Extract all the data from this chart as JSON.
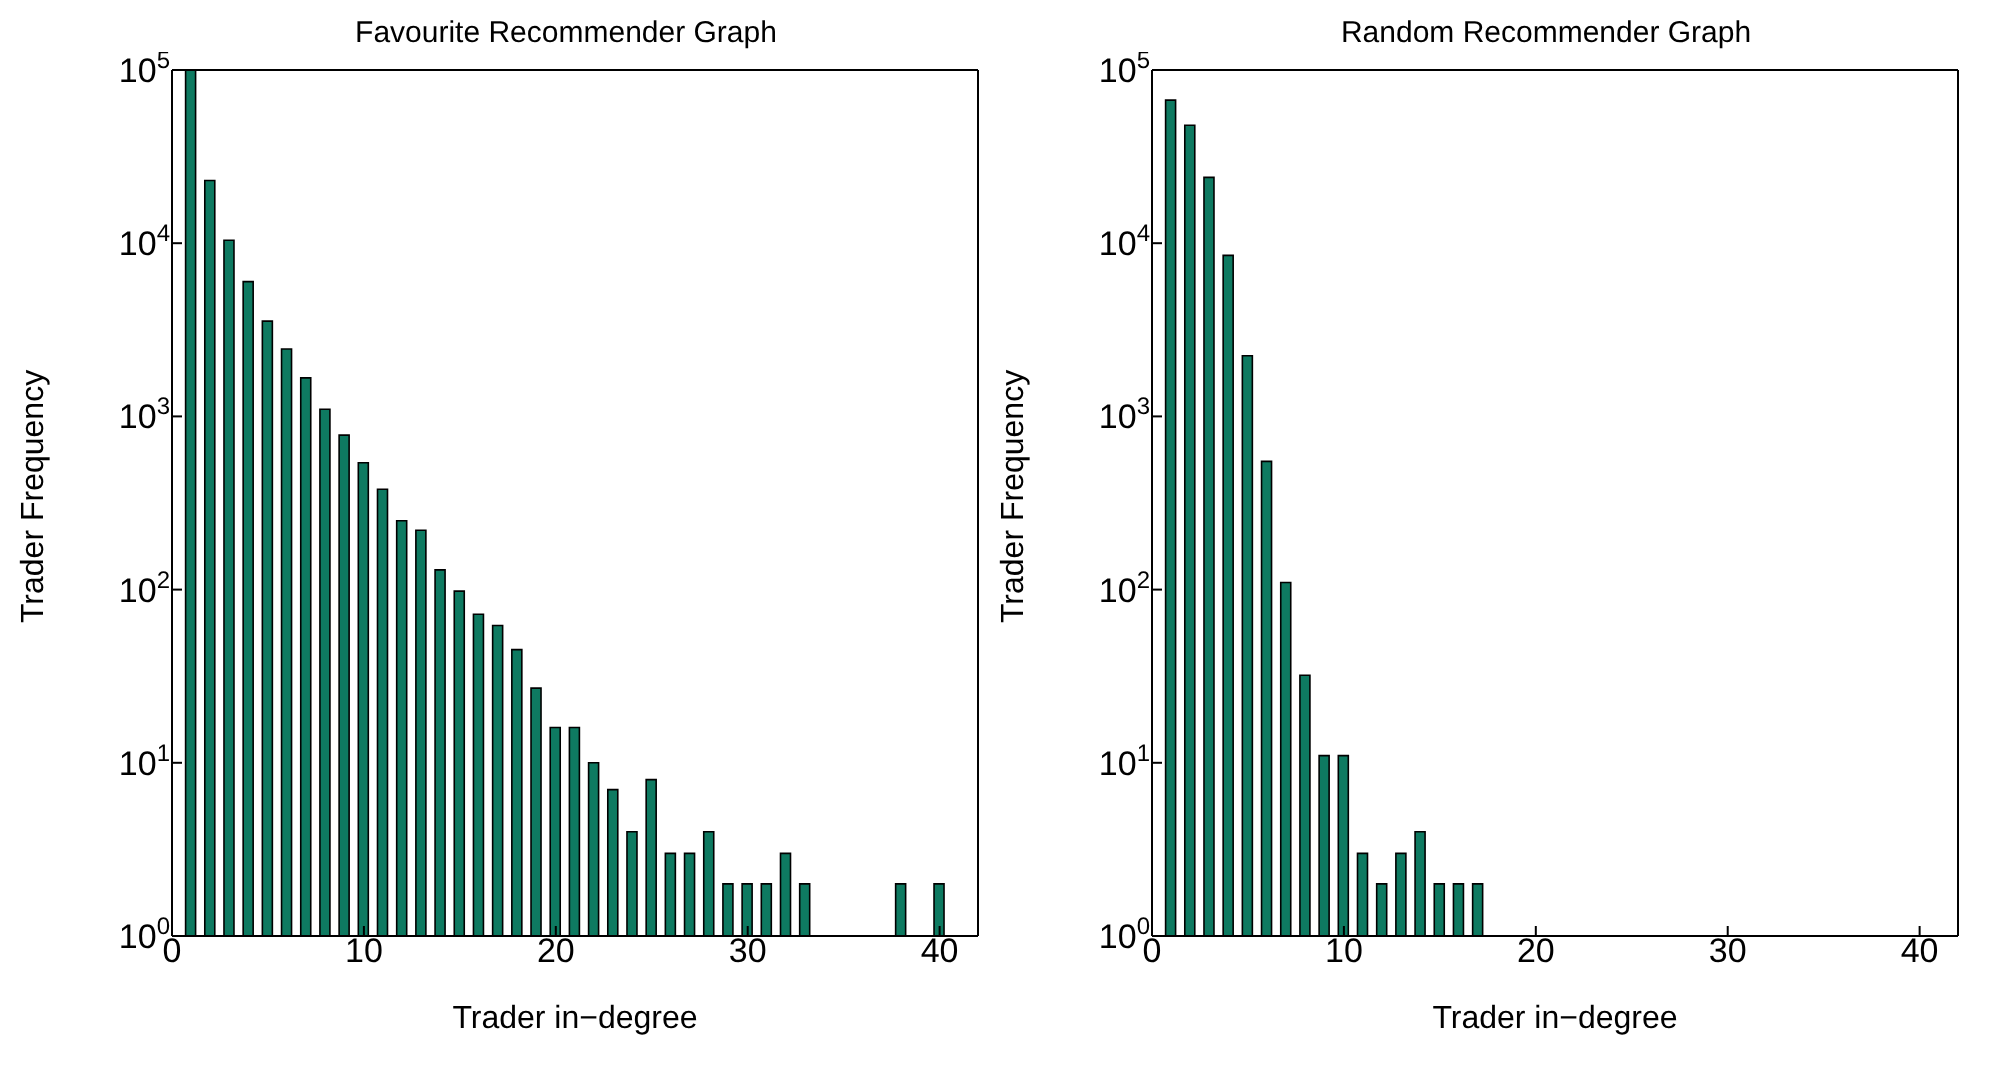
{
  "chart_data": [
    {
      "type": "bar",
      "title": "Favourite Recommender Graph",
      "xlabel": "Trader in−degree",
      "ylabel": "Trader Frequency",
      "x": [
        1,
        2,
        3,
        4,
        5,
        6,
        7,
        8,
        9,
        10,
        11,
        12,
        13,
        14,
        15,
        16,
        17,
        18,
        19,
        20,
        21,
        22,
        23,
        24,
        25,
        26,
        27,
        28,
        29,
        30,
        31,
        32,
        33,
        34,
        35,
        36,
        37,
        38,
        39,
        40
      ],
      "values": [
        100000,
        23000,
        10400,
        6000,
        3550,
        2450,
        1670,
        1100,
        780,
        540,
        380,
        250,
        220,
        130,
        98,
        72,
        62,
        45,
        27,
        16,
        16,
        10,
        7,
        4,
        8,
        3,
        3,
        4,
        2,
        2,
        2,
        3,
        2,
        null,
        null,
        null,
        null,
        2,
        null,
        2
      ],
      "color": "#0e7a61",
      "log": true,
      "xlim": [
        0,
        42
      ],
      "xticks": [
        0,
        10,
        20,
        30,
        40
      ],
      "ylim": [
        1,
        100000
      ],
      "yticks": [
        {
          "value": 1,
          "label": "10$^{0}$"
        },
        {
          "value": 10,
          "label": "10$^{1}$"
        },
        {
          "value": 100,
          "label": "10$^{2}$"
        },
        {
          "value": 1000,
          "label": "10$^{3}$"
        },
        {
          "value": 10000,
          "label": "10$^{4}$"
        },
        {
          "value": 100000,
          "label": "10$^{5}$"
        }
      ],
      "grid": false,
      "legend": false
    },
    {
      "type": "bar",
      "title": "Random Recommender Graph",
      "xlabel": "Trader in−degree",
      "ylabel": "Trader Frequency",
      "x": [
        1,
        2,
        3,
        4,
        5,
        6,
        7,
        8,
        9,
        10,
        11,
        12,
        13,
        14,
        15,
        16,
        17
      ],
      "values": [
        67000,
        48000,
        24000,
        8500,
        2240,
        550,
        110,
        32,
        11,
        11,
        3,
        2,
        3,
        4,
        2,
        2,
        2
      ],
      "color": "#0e7a61",
      "log": true,
      "xlim": [
        0,
        42
      ],
      "xticks": [
        0,
        10,
        20,
        30,
        40
      ],
      "ylim": [
        1,
        100000
      ],
      "yticks": [
        {
          "value": 1,
          "label": "10$^{0}$"
        },
        {
          "value": 10,
          "label": "10$^{1}$"
        },
        {
          "value": 100,
          "label": "10$^{2}$"
        },
        {
          "value": 1000,
          "label": "10$^{3}$"
        },
        {
          "value": 10000,
          "label": "10$^{4}$"
        },
        {
          "value": 100000,
          "label": "10$^{5}$"
        }
      ],
      "grid": false,
      "legend": false
    }
  ]
}
